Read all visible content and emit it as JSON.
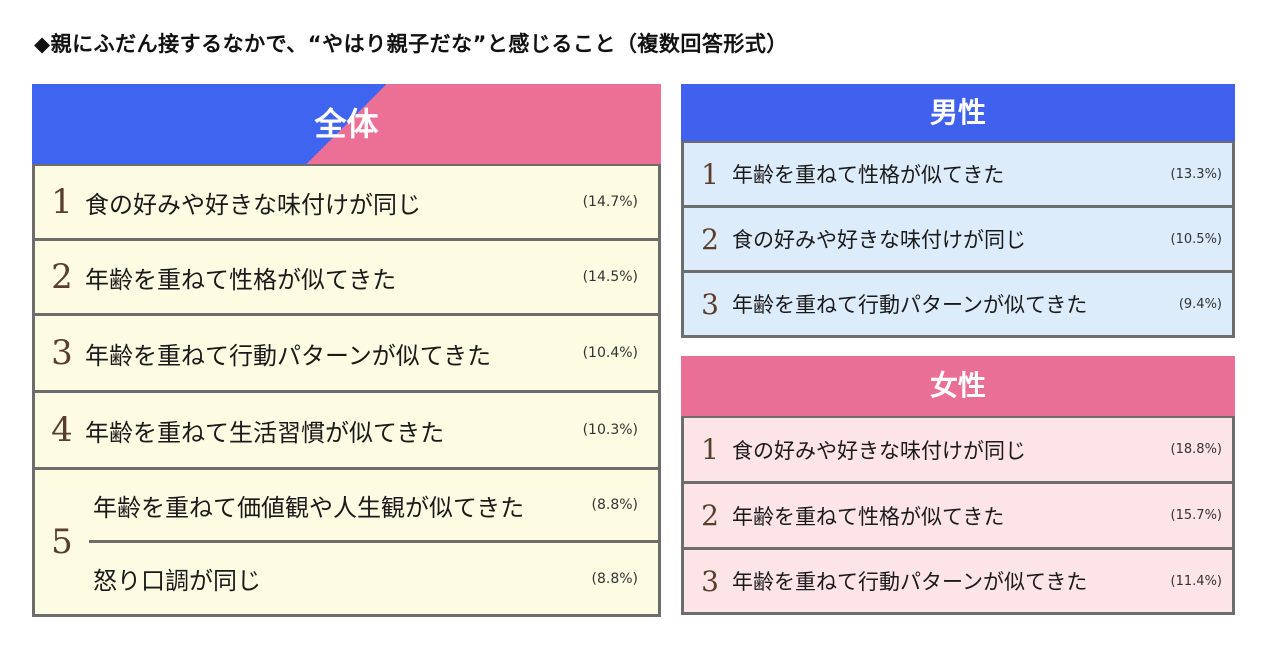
{
  "title": "◆親にふだん接するなかで、“やはり親子だな”と感じること（複数回答形式）",
  "overall": {
    "header": "全体",
    "rows": [
      {
        "rank": "1",
        "text": "食の好みや好きな味付けが同じ",
        "pct": "(14.7%)"
      },
      {
        "rank": "2",
        "text": "年齢を重ねて性格が似てきた",
        "pct": "(14.5%)"
      },
      {
        "rank": "3",
        "text": "年齢を重ねて行動パターンが似てきた",
        "pct": "(10.4%)"
      },
      {
        "rank": "4",
        "text": "年齢を重ねて生活習慣が似てきた",
        "pct": "(10.3%)"
      }
    ],
    "tie": {
      "rank": "5",
      "items": [
        {
          "text": "年齢を重ねて価値観や人生観が似てきた",
          "pct": "(8.8%)"
        },
        {
          "text": "怒り口調が同じ",
          "pct": "(8.8%)"
        }
      ]
    }
  },
  "male": {
    "header": "男性",
    "rows": [
      {
        "rank": "1",
        "text": "年齢を重ねて性格が似てきた",
        "pct": "(13.3%)"
      },
      {
        "rank": "2",
        "text": "食の好みや好きな味付けが同じ",
        "pct": "(10.5%)"
      },
      {
        "rank": "3",
        "text": "年齢を重ねて行動パターンが似てきた",
        "pct": "(9.4%)"
      }
    ]
  },
  "female": {
    "header": "女性",
    "rows": [
      {
        "rank": "1",
        "text": "食の好みや好きな味付けが同じ",
        "pct": "(18.8%)"
      },
      {
        "rank": "2",
        "text": "年齢を重ねて性格が似てきた",
        "pct": "(15.7%)"
      },
      {
        "rank": "3",
        "text": "年齢を重ねて行動パターンが似てきた",
        "pct": "(11.4%)"
      }
    ]
  },
  "colors": {
    "male_header": "#4060ee",
    "female_header": "#ea6f96",
    "overall_row_bg": "#fdfbe2",
    "male_row_bg": "#dcecfb",
    "female_row_bg": "#fde4e7",
    "rank_color": "#5a3d2a"
  }
}
